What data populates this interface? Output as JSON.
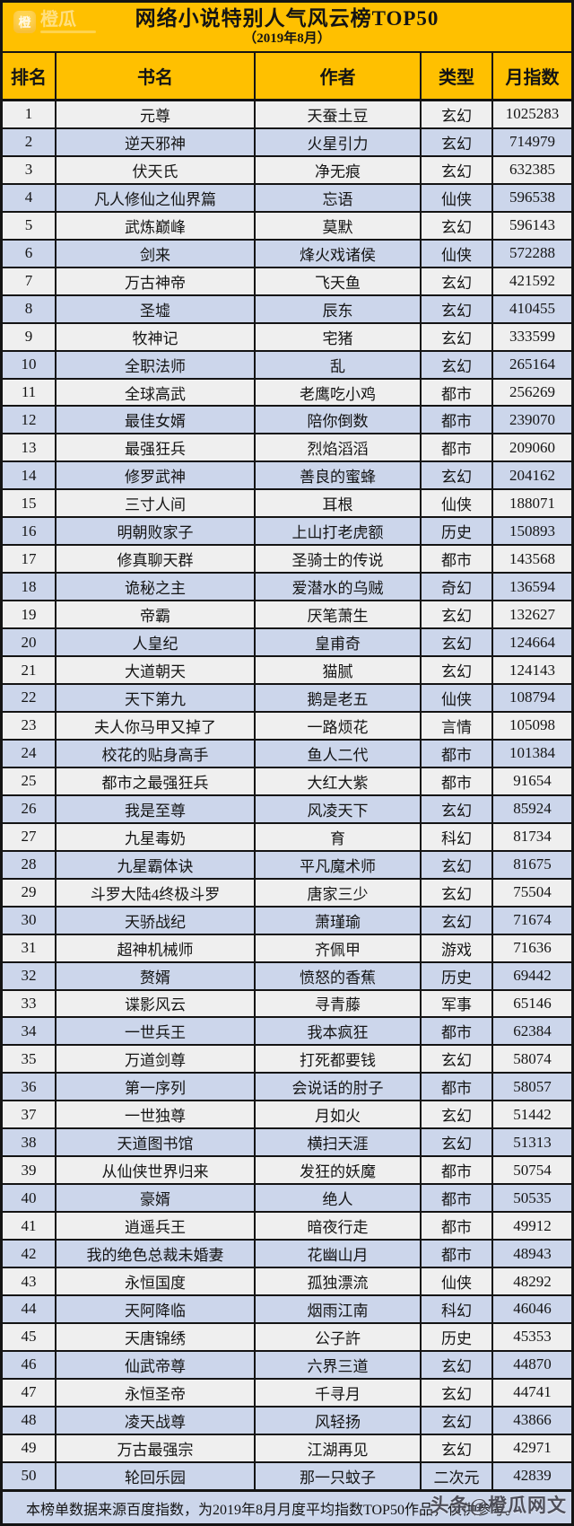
{
  "header": {
    "logo_text": "橙瓜",
    "logo_icon": "chengua-app-icon"
  },
  "chart_data": {
    "type": "table",
    "title": "网络小说特别人气风云榜TOP50",
    "subtitle": "（2019年8月）",
    "columns": [
      "排名",
      "书名",
      "作者",
      "类型",
      "月指数"
    ],
    "layout": "zebra-striped table, gold header, black gridlines",
    "rows": [
      {
        "rank": "1",
        "title": "元尊",
        "author": "天蚕土豆",
        "genre": "玄幻",
        "index": "1025283"
      },
      {
        "rank": "2",
        "title": "逆天邪神",
        "author": "火星引力",
        "genre": "玄幻",
        "index": "714979"
      },
      {
        "rank": "3",
        "title": "伏天氏",
        "author": "净无痕",
        "genre": "玄幻",
        "index": "632385"
      },
      {
        "rank": "4",
        "title": "凡人修仙之仙界篇",
        "author": "忘语",
        "genre": "仙侠",
        "index": "596538"
      },
      {
        "rank": "5",
        "title": "武炼巅峰",
        "author": "莫默",
        "genre": "玄幻",
        "index": "596143"
      },
      {
        "rank": "6",
        "title": "剑来",
        "author": "烽火戏诸侯",
        "genre": "仙侠",
        "index": "572288"
      },
      {
        "rank": "7",
        "title": "万古神帝",
        "author": "飞天鱼",
        "genre": "玄幻",
        "index": "421592"
      },
      {
        "rank": "8",
        "title": "圣墟",
        "author": "辰东",
        "genre": "玄幻",
        "index": "410455"
      },
      {
        "rank": "9",
        "title": "牧神记",
        "author": "宅猪",
        "genre": "玄幻",
        "index": "333599"
      },
      {
        "rank": "10",
        "title": "全职法师",
        "author": "乱",
        "genre": "玄幻",
        "index": "265164"
      },
      {
        "rank": "11",
        "title": "全球高武",
        "author": "老鹰吃小鸡",
        "genre": "都市",
        "index": "256269"
      },
      {
        "rank": "12",
        "title": "最佳女婿",
        "author": "陪你倒数",
        "genre": "都市",
        "index": "239070"
      },
      {
        "rank": "13",
        "title": "最强狂兵",
        "author": "烈焰滔滔",
        "genre": "都市",
        "index": "209060"
      },
      {
        "rank": "14",
        "title": "修罗武神",
        "author": "善良的蜜蜂",
        "genre": "玄幻",
        "index": "204162"
      },
      {
        "rank": "15",
        "title": "三寸人间",
        "author": "耳根",
        "genre": "仙侠",
        "index": "188071"
      },
      {
        "rank": "16",
        "title": "明朝败家子",
        "author": "上山打老虎额",
        "genre": "历史",
        "index": "150893"
      },
      {
        "rank": "17",
        "title": "修真聊天群",
        "author": "圣骑士的传说",
        "genre": "都市",
        "index": "143568"
      },
      {
        "rank": "18",
        "title": "诡秘之主",
        "author": "爱潜水的乌贼",
        "genre": "奇幻",
        "index": "136594"
      },
      {
        "rank": "19",
        "title": "帝霸",
        "author": "厌笔萧生",
        "genre": "玄幻",
        "index": "132627"
      },
      {
        "rank": "20",
        "title": "人皇纪",
        "author": "皇甫奇",
        "genre": "玄幻",
        "index": "124664"
      },
      {
        "rank": "21",
        "title": "大道朝天",
        "author": "猫腻",
        "genre": "玄幻",
        "index": "124143"
      },
      {
        "rank": "22",
        "title": "天下第九",
        "author": "鹅是老五",
        "genre": "仙侠",
        "index": "108794"
      },
      {
        "rank": "23",
        "title": "夫人你马甲又掉了",
        "author": "一路烦花",
        "genre": "言情",
        "index": "105098"
      },
      {
        "rank": "24",
        "title": "校花的贴身高手",
        "author": "鱼人二代",
        "genre": "都市",
        "index": "101384"
      },
      {
        "rank": "25",
        "title": "都市之最强狂兵",
        "author": "大红大紫",
        "genre": "都市",
        "index": "91654"
      },
      {
        "rank": "26",
        "title": "我是至尊",
        "author": "风凌天下",
        "genre": "玄幻",
        "index": "85924"
      },
      {
        "rank": "27",
        "title": "九星毒奶",
        "author": "育",
        "genre": "科幻",
        "index": "81734"
      },
      {
        "rank": "28",
        "title": "九星霸体诀",
        "author": "平凡魔术师",
        "genre": "玄幻",
        "index": "81675"
      },
      {
        "rank": "29",
        "title": "斗罗大陆4终极斗罗",
        "author": "唐家三少",
        "genre": "玄幻",
        "index": "75504"
      },
      {
        "rank": "30",
        "title": "天骄战纪",
        "author": "萧瑾瑜",
        "genre": "玄幻",
        "index": "71674"
      },
      {
        "rank": "31",
        "title": "超神机械师",
        "author": "齐佩甲",
        "genre": "游戏",
        "index": "71636"
      },
      {
        "rank": "32",
        "title": "赘婿",
        "author": "愤怒的香蕉",
        "genre": "历史",
        "index": "69442"
      },
      {
        "rank": "33",
        "title": "谍影风云",
        "author": "寻青藤",
        "genre": "军事",
        "index": "65146"
      },
      {
        "rank": "34",
        "title": "一世兵王",
        "author": "我本疯狂",
        "genre": "都市",
        "index": "62384"
      },
      {
        "rank": "35",
        "title": "万道剑尊",
        "author": "打死都要钱",
        "genre": "玄幻",
        "index": "58074"
      },
      {
        "rank": "36",
        "title": "第一序列",
        "author": "会说话的肘子",
        "genre": "都市",
        "index": "58057"
      },
      {
        "rank": "37",
        "title": "一世独尊",
        "author": "月如火",
        "genre": "玄幻",
        "index": "51442"
      },
      {
        "rank": "38",
        "title": "天道图书馆",
        "author": "横扫天涯",
        "genre": "玄幻",
        "index": "51313"
      },
      {
        "rank": "39",
        "title": "从仙侠世界归来",
        "author": "发狂的妖魔",
        "genre": "都市",
        "index": "50754"
      },
      {
        "rank": "40",
        "title": "豪婿",
        "author": "绝人",
        "genre": "都市",
        "index": "50535"
      },
      {
        "rank": "41",
        "title": "逍遥兵王",
        "author": "暗夜行走",
        "genre": "都市",
        "index": "49912"
      },
      {
        "rank": "42",
        "title": "我的绝色总裁未婚妻",
        "author": "花幽山月",
        "genre": "都市",
        "index": "48943"
      },
      {
        "rank": "43",
        "title": "永恒国度",
        "author": "孤独漂流",
        "genre": "仙侠",
        "index": "48292"
      },
      {
        "rank": "44",
        "title": "天阿降临",
        "author": "烟雨江南",
        "genre": "科幻",
        "index": "46046"
      },
      {
        "rank": "45",
        "title": "天唐锦绣",
        "author": "公子許",
        "genre": "历史",
        "index": "45353"
      },
      {
        "rank": "46",
        "title": "仙武帝尊",
        "author": "六界三道",
        "genre": "玄幻",
        "index": "44870"
      },
      {
        "rank": "47",
        "title": "永恒圣帝",
        "author": "千寻月",
        "genre": "玄幻",
        "index": "44741"
      },
      {
        "rank": "48",
        "title": "凌天战尊",
        "author": "风轻扬",
        "genre": "玄幻",
        "index": "43866"
      },
      {
        "rank": "49",
        "title": "万古最强宗",
        "author": "江湖再见",
        "genre": "玄幻",
        "index": "42971"
      },
      {
        "rank": "50",
        "title": "轮回乐园",
        "author": "那一只蚊子",
        "genre": "二次元",
        "index": "42839"
      }
    ]
  },
  "footer": {
    "note": "本榜单数据来源百度指数，为2019年8月月度平均指数TOP50作品，仅供参考。"
  },
  "watermark": {
    "text": "头条@橙瓜网文"
  },
  "colors": {
    "accent_gold": "#FFC000",
    "row_light": "#EFEFEF",
    "row_blue": "#CCD6EB",
    "grid_border": "#141414"
  }
}
